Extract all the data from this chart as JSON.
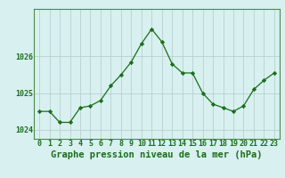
{
  "title": "Graphe pression niveau de la mer (hPa)",
  "x_labels": [
    "0",
    "1",
    "2",
    "3",
    "4",
    "5",
    "6",
    "7",
    "8",
    "9",
    "10",
    "11",
    "12",
    "13",
    "14",
    "15",
    "16",
    "17",
    "18",
    "19",
    "20",
    "21",
    "22",
    "23"
  ],
  "hours": [
    0,
    1,
    2,
    3,
    4,
    5,
    6,
    7,
    8,
    9,
    10,
    11,
    12,
    13,
    14,
    15,
    16,
    17,
    18,
    19,
    20,
    21,
    22,
    23
  ],
  "pressure": [
    1024.5,
    1024.5,
    1024.2,
    1024.2,
    1024.6,
    1024.65,
    1024.8,
    1025.2,
    1025.5,
    1025.85,
    1026.35,
    1026.75,
    1026.4,
    1025.8,
    1025.55,
    1025.55,
    1025.0,
    1024.7,
    1024.6,
    1024.5,
    1024.65,
    1025.1,
    1025.35,
    1025.55
  ],
  "line_color": "#1a6e1a",
  "marker": "D",
  "marker_size": 2.2,
  "bg_color": "#d8f0f0",
  "grid_color": "#b8d0d0",
  "axis_label_color": "#1a6e1a",
  "ylim": [
    1023.75,
    1027.3
  ],
  "yticks": [
    1024,
    1025,
    1026
  ],
  "title_fontsize": 7.5,
  "tick_fontsize": 6.0,
  "linewidth": 0.9
}
